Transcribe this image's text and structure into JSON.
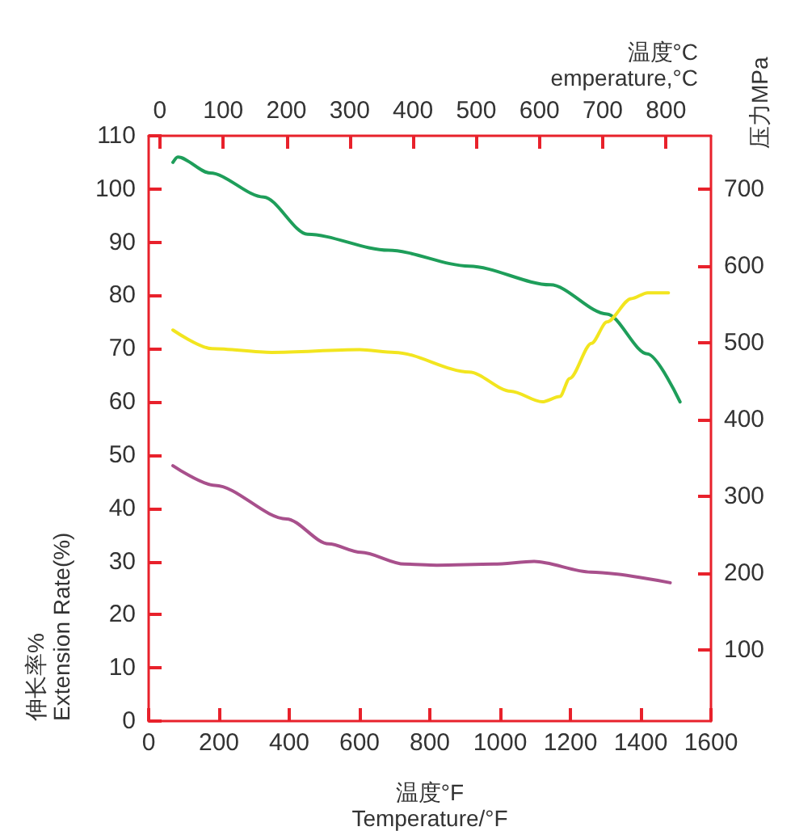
{
  "chart_data": {
    "type": "line",
    "xlabel": "温度°F\nTemperature/°F",
    "ylabel": "伸长率%\nExtension Rate(%)",
    "x2label": "温度°C\nemperature,°C",
    "y2label": "压力MPa",
    "series": [
      {
        "color": "#1e9e5a",
        "x": [
          69,
          83,
          175,
          327,
          452,
          682,
          912,
          1143,
          1304,
          1419,
          1512
        ],
        "values": [
          105,
          106,
          103,
          98.5,
          91.5,
          88.5,
          85.5,
          82,
          76.5,
          69,
          60
        ]
      },
      {
        "color": "#f2e51f",
        "x": [
          69,
          180,
          350,
          600,
          700,
          912,
          1030,
          1120,
          1170,
          1198,
          1260,
          1304,
          1373,
          1420,
          1479
        ],
        "values": [
          73.5,
          70,
          69.3,
          69.8,
          69.3,
          65.6,
          62,
          60,
          61,
          64.4,
          71,
          75,
          79.4,
          80.5,
          80.5
        ]
      },
      {
        "color": "#a8508c",
        "x": [
          69,
          189,
          392,
          512,
          604,
          728,
          820,
          982,
          1097,
          1258,
          1484
        ],
        "values": [
          48,
          44.3,
          38,
          33.3,
          31.7,
          29.5,
          29.3,
          29.5,
          30,
          28,
          26
        ]
      }
    ],
    "xlim": [
      0,
      1600
    ],
    "xticks": [
      0,
      200,
      400,
      600,
      800,
      1000,
      1200,
      1400,
      1600
    ],
    "ylim": [
      0,
      110
    ],
    "yticks": [
      0,
      10,
      20,
      30,
      40,
      50,
      60,
      70,
      80,
      90,
      100,
      110
    ],
    "x2lim": [
      -17.8,
      871.1
    ],
    "x2ticks": [
      0,
      100,
      200,
      300,
      400,
      500,
      600,
      700,
      800
    ],
    "y2lim": [
      7,
      769
    ],
    "y2ticks": [
      100,
      200,
      300,
      400,
      500,
      600,
      700
    ],
    "grid": false
  }
}
